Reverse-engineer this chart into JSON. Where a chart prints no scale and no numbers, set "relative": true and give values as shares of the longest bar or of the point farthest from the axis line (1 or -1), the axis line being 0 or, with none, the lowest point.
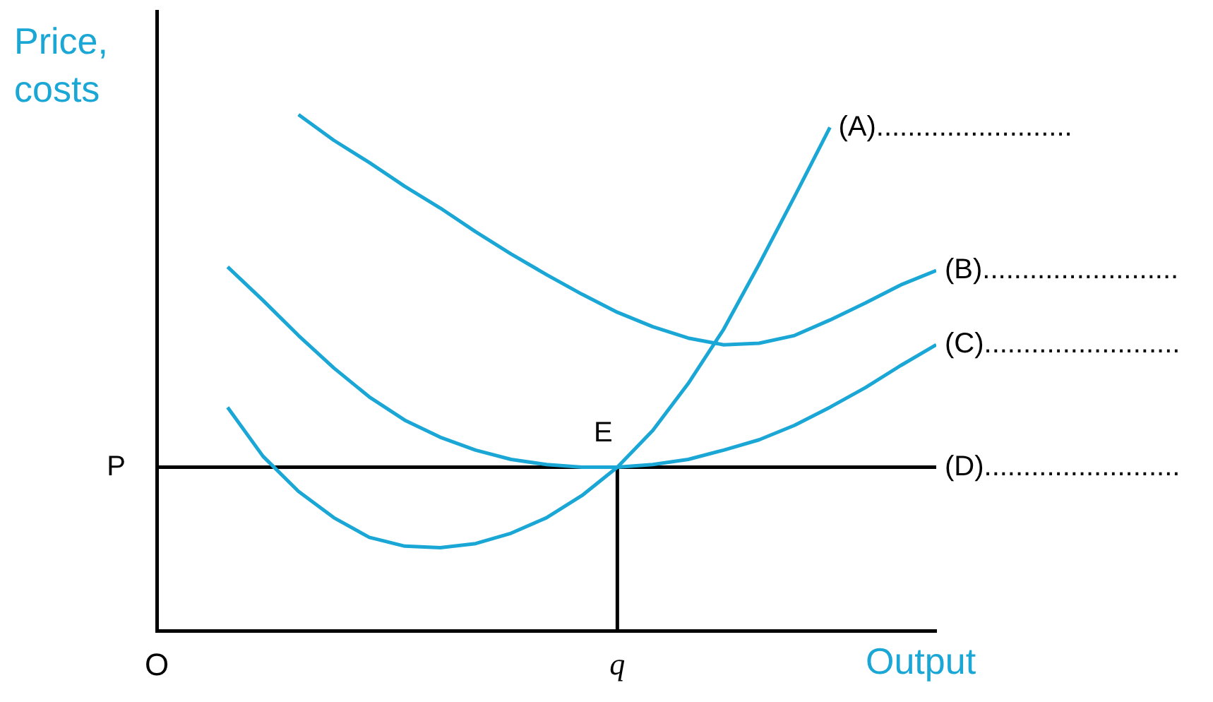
{
  "chart_data": {
    "type": "line",
    "relative": true,
    "xlabel": "Output",
    "ylabel": "Price, costs",
    "categories": [
      "O",
      null,
      null,
      null,
      null,
      null,
      null,
      null,
      null,
      null,
      null,
      null,
      null,
      "q",
      null,
      null,
      null,
      null,
      null,
      null,
      null,
      null,
      null
    ],
    "series": [
      {
        "name": "(A).........................",
        "color": "#1aa7d6",
        "values": [
          null,
          null,
          0.433,
          0.338,
          0.27,
          0.219,
          0.181,
          0.164,
          0.161,
          0.169,
          0.189,
          0.219,
          0.262,
          0.317,
          0.388,
          0.479,
          0.584,
          0.71,
          0.841,
          0.975,
          null,
          null,
          null
        ]
      },
      {
        "name": "(B).........................",
        "color": "#1aa7d6",
        "values": [
          null,
          null,
          null,
          null,
          1,
          0.95,
          0.907,
          0.861,
          0.819,
          0.773,
          0.73,
          0.69,
          0.652,
          0.617,
          0.589,
          0.567,
          0.554,
          0.557,
          0.572,
          0.602,
          0.635,
          0.67,
          0.698
        ]
      },
      {
        "name": "(C).........................",
        "color": "#1aa7d6",
        "values": [
          null,
          null,
          0.705,
          0.64,
          0.572,
          0.509,
          0.453,
          0.408,
          0.375,
          0.35,
          0.332,
          0.322,
          0.317,
          0.317,
          0.322,
          0.332,
          0.35,
          0.37,
          0.398,
          0.433,
          0.471,
          0.514,
          0.554
        ]
      },
      {
        "name": "(D).........................",
        "color": "#000000",
        "values": [
          0.317,
          0.317,
          0.317,
          0.317,
          0.317,
          0.317,
          0.317,
          0.317,
          0.317,
          0.317,
          0.317,
          0.317,
          0.317,
          0.317,
          0.317,
          0.317,
          0.317,
          0.317,
          0.317,
          0.317,
          0.317,
          0.317,
          0.317
        ]
      },
      {
        "color": "#000000",
        "x": [
          "q",
          "q"
        ],
        "values": [
          0,
          0.317
        ]
      }
    ],
    "annotations": [
      "P",
      {
        "text": "E",
        "x": "q",
        "y": 0.317
      }
    ],
    "grid": false,
    "legend": false,
    "marker": "none",
    "line_style": "solid"
  }
}
